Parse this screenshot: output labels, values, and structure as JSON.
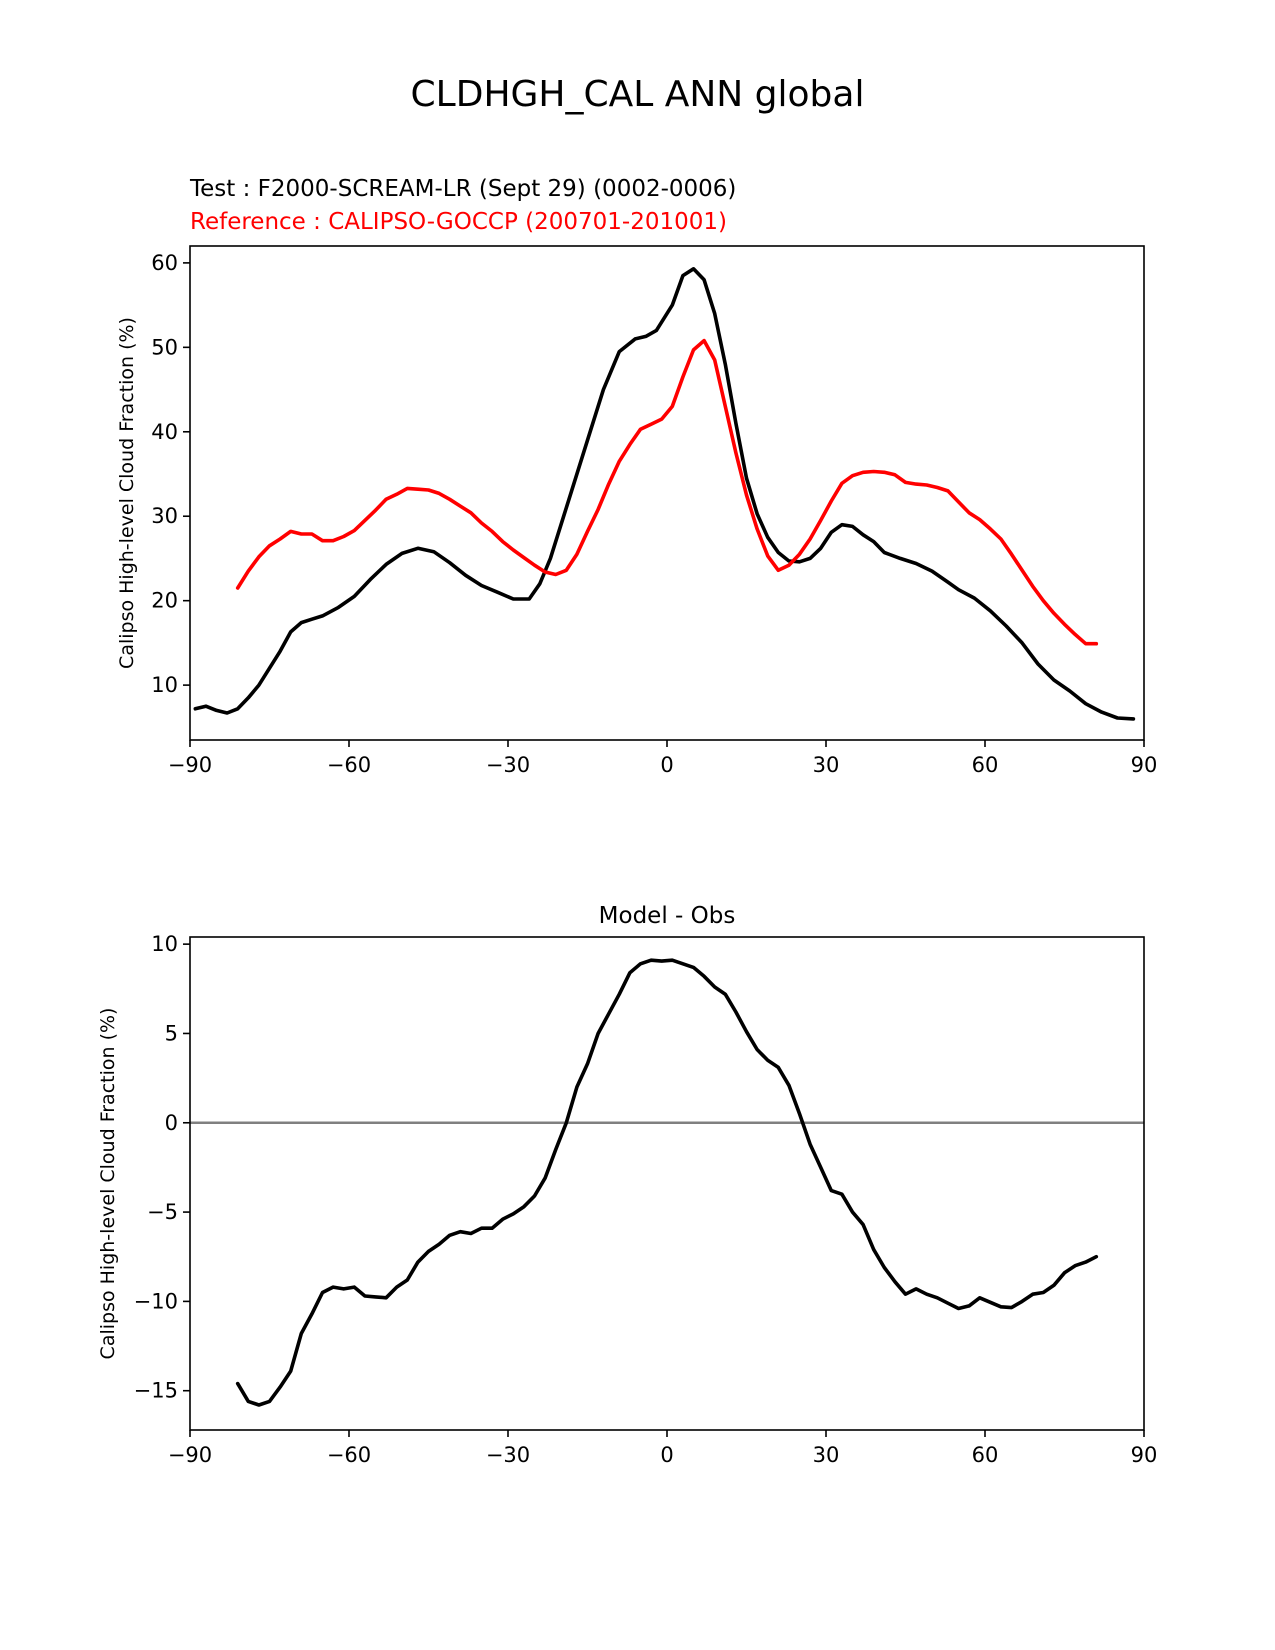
{
  "figure": {
    "title": "CLDHGH_CAL ANN global",
    "test_label": "Test : F2000-SCREAM-LR (Sept 29) (0002-0006)",
    "ref_label": "Reference : CALIPSO-GOCCP (200701-201001)",
    "diff_title": "Model - Obs"
  },
  "colors": {
    "test": "#000000",
    "reference": "#ff0000",
    "zero_line": "#808080"
  },
  "chart_data": [
    {
      "type": "line",
      "title": "",
      "xlabel": "",
      "ylabel": "Calipso High-level Cloud Fraction (%)",
      "xlim": [
        -90,
        90
      ],
      "ylim": [
        3.5,
        62
      ],
      "xticks": [
        -90,
        -60,
        -30,
        0,
        30,
        60,
        90
      ],
      "xtick_labels": [
        "−90",
        "−60",
        "−30",
        "0",
        "30",
        "60",
        "90"
      ],
      "yticks": [
        10,
        20,
        30,
        40,
        50,
        60
      ],
      "ytick_labels": [
        "10",
        "20",
        "30",
        "40",
        "50",
        "60"
      ],
      "series": [
        {
          "name": "Test",
          "color": "#000000",
          "x": [
            -89,
            -87,
            -85,
            -83,
            -81,
            -79,
            -77,
            -75,
            -73,
            -71,
            -69,
            -67,
            -65,
            -62,
            -59,
            -56,
            -53,
            -50,
            -47,
            -44,
            -41,
            -38,
            -35,
            -32,
            -29,
            -26,
            -24,
            -22,
            -20,
            -18,
            -15,
            -12,
            -9,
            -6,
            -4,
            -2,
            1,
            3,
            5,
            7,
            9,
            11,
            13,
            15,
            17,
            19,
            21,
            23,
            25,
            27,
            29,
            31,
            33,
            35,
            37,
            39,
            41,
            44,
            47,
            50,
            53,
            55,
            58,
            61,
            64,
            67,
            70,
            73,
            76,
            79,
            82,
            85,
            88
          ],
          "values": [
            7.2,
            7.5,
            7,
            6.7,
            7.2,
            8.5,
            10,
            12,
            14,
            16.3,
            17.4,
            17.8,
            18.2,
            19.2,
            20.5,
            22.5,
            24.3,
            25.6,
            26.2,
            25.8,
            24.5,
            23,
            21.8,
            21,
            20.2,
            20.2,
            22,
            25,
            29,
            33,
            39,
            45,
            49.5,
            51,
            51.3,
            52,
            55,
            58.5,
            59.3,
            58,
            54,
            48,
            41,
            34.5,
            30.3,
            27.5,
            25.7,
            24.7,
            24.6,
            25,
            26.2,
            28.1,
            29,
            28.8,
            27.8,
            27,
            25.7,
            25,
            24.4,
            23.5,
            22.2,
            21.3,
            20.3,
            18.8,
            17,
            15,
            12.5,
            10.6,
            9.3,
            7.8,
            6.8,
            6.1,
            6
          ]
        },
        {
          "name": "Reference",
          "color": "#ff0000",
          "x": [
            -81,
            -79,
            -77,
            -75,
            -73,
            -71,
            -69,
            -67,
            -65,
            -63,
            -61,
            -59,
            -57,
            -55,
            -53,
            -51,
            -49,
            -47,
            -45,
            -43,
            -41,
            -39,
            -37,
            -35,
            -33,
            -31,
            -29,
            -27,
            -25,
            -23,
            -21,
            -19,
            -17,
            -15,
            -13,
            -11,
            -9,
            -7,
            -5,
            -3,
            -1,
            1,
            3,
            5,
            7,
            9,
            11,
            13,
            15,
            17,
            19,
            21,
            23,
            25,
            27,
            29,
            31,
            33,
            35,
            37,
            39,
            41,
            43,
            45,
            47,
            49,
            51,
            53,
            55,
            57,
            59,
            61,
            63,
            65,
            67,
            69,
            71,
            73,
            75,
            77,
            79,
            81
          ],
          "values": [
            21.5,
            23.5,
            25.2,
            26.5,
            27.3,
            28.2,
            27.9,
            27.9,
            27.1,
            27.1,
            27.6,
            28.3,
            29.5,
            30.7,
            32,
            32.6,
            33.3,
            33.2,
            33.1,
            32.7,
            32,
            31.2,
            30.4,
            29.2,
            28.2,
            27,
            26,
            25.1,
            24.2,
            23.4,
            23.1,
            23.6,
            25.5,
            28.2,
            30.8,
            33.8,
            36.5,
            38.5,
            40.3,
            40.9,
            41.5,
            43,
            46.5,
            49.7,
            50.8,
            48.5,
            43,
            37.5,
            32.5,
            28.5,
            25.3,
            23.6,
            24.2,
            25.5,
            27.3,
            29.5,
            31.8,
            33.9,
            34.8,
            35.2,
            35.3,
            35.2,
            34.9,
            34,
            33.8,
            33.7,
            33.4,
            33,
            31.7,
            30.4,
            29.6,
            28.5,
            27.3,
            25.5,
            23.6,
            21.7,
            20,
            18.5,
            17.2,
            16,
            14.9,
            14.9
          ]
        }
      ]
    },
    {
      "type": "line",
      "title": "Model - Obs",
      "xlabel": "",
      "ylabel": "Calipso High-level Cloud Fraction (%)",
      "xlim": [
        -90,
        90
      ],
      "ylim": [
        -17.2,
        10.4
      ],
      "xticks": [
        -90,
        -60,
        -30,
        0,
        30,
        60,
        90
      ],
      "xtick_labels": [
        "−90",
        "−60",
        "−30",
        "0",
        "30",
        "60",
        "90"
      ],
      "yticks": [
        -15,
        -10,
        -5,
        0,
        5,
        10
      ],
      "ytick_labels": [
        "−15",
        "−10",
        "−5",
        "0",
        "5",
        "10"
      ],
      "hline": 0,
      "series": [
        {
          "name": "Model - Obs",
          "color": "#000000",
          "x": [
            -81,
            -79,
            -77,
            -75,
            -73,
            -71,
            -69,
            -67,
            -65,
            -63,
            -61,
            -59,
            -57,
            -55,
            -53,
            -51,
            -49,
            -47,
            -45,
            -43,
            -41,
            -39,
            -37,
            -35,
            -33,
            -31,
            -29,
            -27,
            -25,
            -23,
            -21,
            -19,
            -17,
            -15,
            -13,
            -11,
            -9,
            -7,
            -5,
            -3,
            -1,
            1,
            3,
            5,
            7,
            9,
            11,
            13,
            15,
            17,
            19,
            21,
            23,
            25,
            27,
            29,
            31,
            33,
            35,
            37,
            39,
            41,
            43,
            45,
            47,
            49,
            51,
            53,
            55,
            57,
            59,
            61,
            63,
            65,
            67,
            69,
            71,
            73,
            75,
            77,
            79,
            81
          ],
          "values": [
            -14.6,
            -15.6,
            -15.8,
            -15.6,
            -14.8,
            -13.9,
            -11.8,
            -10.7,
            -9.5,
            -9.2,
            -9.3,
            -9.2,
            -9.7,
            -9.75,
            -9.8,
            -9.2,
            -8.8,
            -7.8,
            -7.2,
            -6.8,
            -6.3,
            -6.1,
            -6.2,
            -5.9,
            -5.9,
            -5.4,
            -5.1,
            -4.7,
            -4.1,
            -3.1,
            -1.5,
            0,
            2,
            3.3,
            5,
            6.1,
            7.2,
            8.4,
            8.9,
            9.1,
            9.05,
            9.1,
            8.9,
            8.7,
            8.2,
            7.6,
            7.2,
            6.2,
            5.1,
            4.1,
            3.5,
            3.1,
            2.1,
            0.5,
            -1.2,
            -2.5,
            -3.8,
            -4,
            -5,
            -5.7,
            -7.1,
            -8.1,
            -8.9,
            -9.6,
            -9.3,
            -9.6,
            -9.8,
            -10.1,
            -10.4,
            -10.25,
            -9.8,
            -10.05,
            -10.3,
            -10.35,
            -10,
            -9.6,
            -9.5,
            -9.1,
            -8.4,
            -8,
            -7.8,
            -7.5
          ]
        }
      ]
    }
  ]
}
